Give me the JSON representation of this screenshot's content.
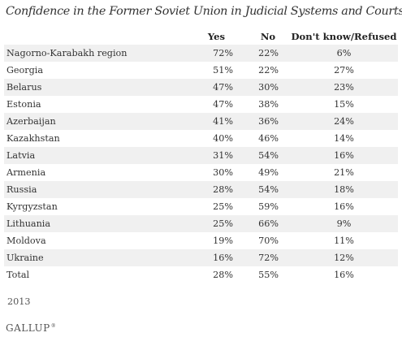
{
  "chart_data": {
    "type": "table",
    "title": "Confidence in the Former Soviet Union in Judicial Systems and Courts",
    "columns": [
      "",
      "Yes",
      "No",
      "Don't know/Refused"
    ],
    "rows": [
      {
        "name": "Nagorno-Karabakh region",
        "yes": "72%",
        "no": "22%",
        "dk": "6%"
      },
      {
        "name": "Georgia",
        "yes": "51%",
        "no": "22%",
        "dk": "27%"
      },
      {
        "name": "Belarus",
        "yes": "47%",
        "no": "30%",
        "dk": "23%"
      },
      {
        "name": "Estonia",
        "yes": "47%",
        "no": "38%",
        "dk": "15%"
      },
      {
        "name": "Azerbaijan",
        "yes": "41%",
        "no": "36%",
        "dk": "24%"
      },
      {
        "name": "Kazakhstan",
        "yes": "40%",
        "no": "46%",
        "dk": "14%"
      },
      {
        "name": "Latvia",
        "yes": "31%",
        "no": "54%",
        "dk": "16%"
      },
      {
        "name": "Armenia",
        "yes": "30%",
        "no": "49%",
        "dk": "21%"
      },
      {
        "name": "Russia",
        "yes": "28%",
        "no": "54%",
        "dk": "18%"
      },
      {
        "name": "Kyrgyzstan",
        "yes": "25%",
        "no": "59%",
        "dk": "16%"
      },
      {
        "name": "Lithuania",
        "yes": "25%",
        "no": "66%",
        "dk": "9%"
      },
      {
        "name": "Moldova",
        "yes": "19%",
        "no": "70%",
        "dk": "11%"
      },
      {
        "name": "Ukraine",
        "yes": "16%",
        "no": "72%",
        "dk": "12%"
      },
      {
        "name": "Total",
        "yes": "28%",
        "no": "55%",
        "dk": "16%"
      }
    ],
    "footnote": "2013"
  },
  "brand": {
    "logo_text": "GALLUP",
    "trademark": "®"
  },
  "colors": {
    "stripe": "#f0f0f0",
    "text": "#333333"
  }
}
